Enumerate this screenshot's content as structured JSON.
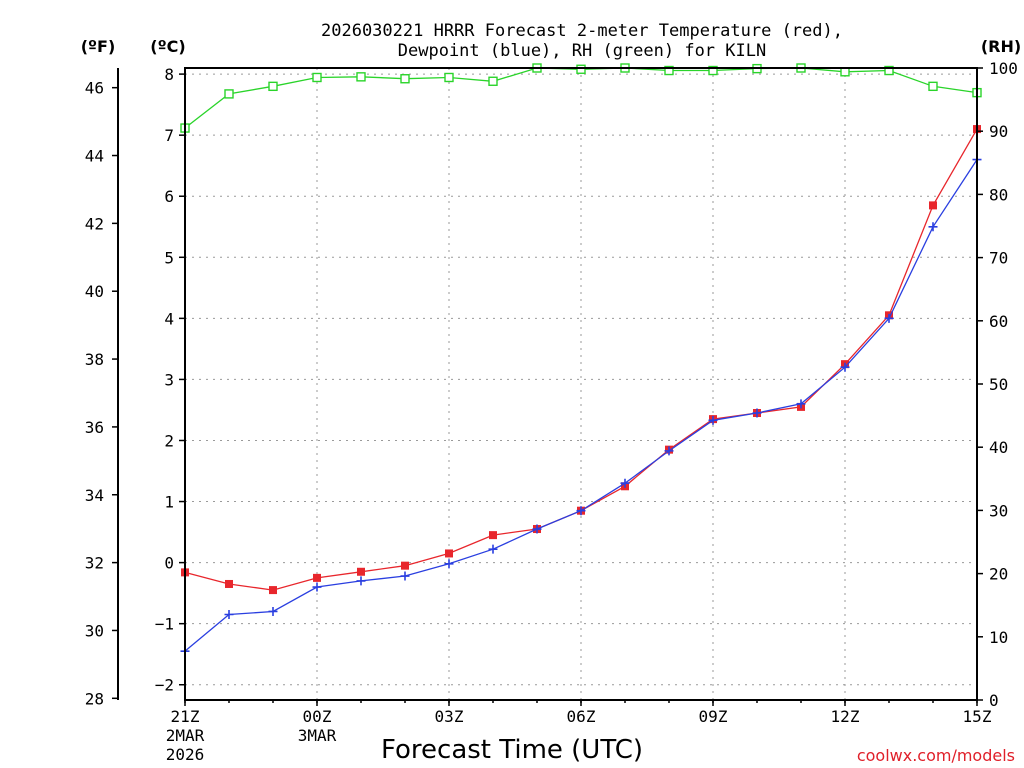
{
  "chart_data": {
    "type": "line",
    "title_line1": "2026030221 HRRR Forecast 2-meter Temperature (red),",
    "title_line2": "Dewpoint (blue), RH (green) for KILN",
    "xlabel": "Forecast Time (UTC)",
    "credit": "coolwx.com/models",
    "unit_labels": {
      "fahrenheit": "(ºF)",
      "celsius": "(ºC)",
      "rh": "(RH)"
    },
    "x_hours": [
      0,
      1,
      2,
      3,
      4,
      5,
      6,
      7,
      8,
      9,
      10,
      11,
      12,
      13,
      14,
      15,
      16,
      17,
      18
    ],
    "x_ticks": [
      {
        "hour": 0,
        "label": "21Z",
        "sub1": "2MAR",
        "sub2": "2026"
      },
      {
        "hour": 3,
        "label": "00Z",
        "sub1": "3MAR",
        "sub2": ""
      },
      {
        "hour": 6,
        "label": "03Z",
        "sub1": "",
        "sub2": ""
      },
      {
        "hour": 9,
        "label": "06Z",
        "sub1": "",
        "sub2": ""
      },
      {
        "hour": 12,
        "label": "09Z",
        "sub1": "",
        "sub2": ""
      },
      {
        "hour": 15,
        "label": "12Z",
        "sub1": "",
        "sub2": ""
      },
      {
        "hour": 18,
        "label": "15Z",
        "sub1": "",
        "sub2": ""
      }
    ],
    "celsius_axis": {
      "ylim": [
        -2.25,
        8.1
      ],
      "ticks": [
        "-2",
        "-1",
        "0",
        "1",
        "2",
        "3",
        "4",
        "5",
        "6",
        "7",
        "8"
      ]
    },
    "fahrenheit_axis": {
      "ticks": [
        "28",
        "30",
        "32",
        "34",
        "36",
        "38",
        "40",
        "42",
        "44",
        "46"
      ]
    },
    "rh_axis": {
      "ylim": [
        0,
        100
      ],
      "ticks": [
        "0",
        "10",
        "20",
        "30",
        "40",
        "50",
        "60",
        "70",
        "80",
        "90",
        "100"
      ]
    },
    "series": [
      {
        "name": "Temperature",
        "color": "#e8262c",
        "axis": "celsius",
        "values": [
          -0.16,
          -0.35,
          -0.45,
          -0.25,
          -0.15,
          -0.05,
          0.15,
          0.45,
          0.55,
          0.85,
          1.25,
          1.85,
          2.35,
          2.45,
          2.55,
          3.25,
          4.05,
          5.85,
          7.1
        ]
      },
      {
        "name": "Dewpoint",
        "color": "#2a3fe0",
        "axis": "celsius",
        "values": [
          -1.45,
          -0.85,
          -0.8,
          -0.4,
          -0.3,
          -0.22,
          -0.02,
          0.22,
          0.55,
          0.85,
          1.3,
          1.83,
          2.33,
          2.45,
          2.6,
          3.2,
          4.0,
          5.5,
          6.6
        ]
      },
      {
        "name": "RH",
        "color": "#2ad42a",
        "axis": "rh",
        "values": [
          90.5,
          95.9,
          97.1,
          98.5,
          98.6,
          98.3,
          98.5,
          97.9,
          100.0,
          99.8,
          100.3,
          99.6,
          99.6,
          99.9,
          100.3,
          99.4,
          99.6,
          97.1,
          96.1
        ]
      }
    ]
  }
}
